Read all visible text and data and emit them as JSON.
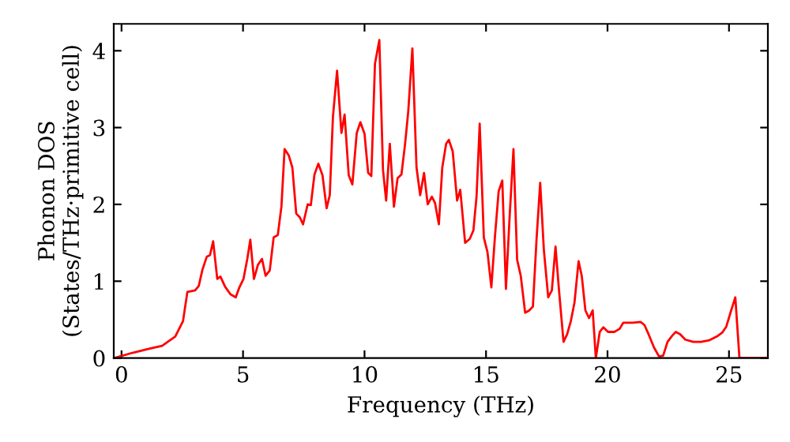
{
  "chart_data": {
    "type": "line",
    "xlabel": "Frequency (THz)",
    "ylabel": "Phonon DOS\n(States/THz·primitive cell)",
    "xlim": [
      -0.32,
      26.6
    ],
    "ylim": [
      0,
      4.35
    ],
    "xticks": [
      0,
      5,
      10,
      15,
      20,
      25
    ],
    "yticks": [
      0,
      1,
      2,
      3,
      4
    ],
    "grid": false,
    "legend": false,
    "marker": "none",
    "line_style": "solid",
    "x": [
      -0.3,
      0.48,
      1.13,
      1.67,
      2.21,
      2.53,
      2.71,
      3.03,
      3.18,
      3.33,
      3.51,
      3.64,
      3.77,
      3.94,
      4.07,
      4.26,
      4.48,
      4.7,
      4.85,
      5.02,
      5.17,
      5.3,
      5.45,
      5.61,
      5.78,
      5.93,
      6.1,
      6.26,
      6.43,
      6.58,
      6.71,
      6.88,
      7.03,
      7.19,
      7.34,
      7.47,
      7.66,
      7.79,
      7.94,
      8.1,
      8.27,
      8.44,
      8.57,
      8.7,
      8.87,
      9.05,
      9.18,
      9.35,
      9.5,
      9.68,
      9.83,
      10.0,
      10.15,
      10.28,
      10.43,
      10.61,
      10.76,
      10.89,
      11.04,
      11.21,
      11.36,
      11.52,
      11.67,
      11.8,
      11.97,
      12.14,
      12.29,
      12.45,
      12.6,
      12.77,
      12.9,
      13.06,
      13.2,
      13.36,
      13.47,
      13.63,
      13.81,
      13.94,
      14.14,
      14.33,
      14.48,
      14.61,
      14.74,
      14.91,
      15.06,
      15.22,
      15.37,
      15.52,
      15.67,
      15.82,
      15.97,
      16.13,
      16.28,
      16.43,
      16.61,
      16.78,
      16.93,
      17.08,
      17.23,
      17.38,
      17.56,
      17.71,
      17.86,
      18.01,
      18.19,
      18.34,
      18.49,
      18.64,
      18.81,
      18.94,
      19.09,
      19.24,
      19.39,
      19.52,
      19.68,
      19.83,
      20.02,
      20.28,
      20.5,
      20.65,
      21.04,
      21.36,
      21.52,
      21.69,
      21.91,
      22.12,
      22.29,
      22.47,
      22.66,
      22.81,
      22.99,
      23.2,
      23.53,
      23.85,
      24.18,
      24.5,
      24.72,
      24.89,
      25.09,
      25.26,
      25.43,
      26.56
    ],
    "series": [
      {
        "color": "#ff0000",
        "values": [
          0,
          0.07,
          0.12,
          0.16,
          0.28,
          0.48,
          0.86,
          0.88,
          0.94,
          1.15,
          1.32,
          1.34,
          1.52,
          1.03,
          1.06,
          0.93,
          0.83,
          0.79,
          0.92,
          1.03,
          1.28,
          1.54,
          1.03,
          1.21,
          1.29,
          1.07,
          1.14,
          1.57,
          1.6,
          1.97,
          2.72,
          2.64,
          2.48,
          1.88,
          1.83,
          1.74,
          2.0,
          1.99,
          2.39,
          2.53,
          2.38,
          1.95,
          2.12,
          3.14,
          3.74,
          2.93,
          3.17,
          2.38,
          2.26,
          2.93,
          3.07,
          2.92,
          2.41,
          2.37,
          3.83,
          4.14,
          2.45,
          2.05,
          2.79,
          1.97,
          2.34,
          2.39,
          2.79,
          3.21,
          4.03,
          2.48,
          2.12,
          2.41,
          2.0,
          2.1,
          2.02,
          1.74,
          2.48,
          2.79,
          2.84,
          2.69,
          2.05,
          2.19,
          1.5,
          1.55,
          1.66,
          2.1,
          3.05,
          1.57,
          1.38,
          0.92,
          1.59,
          2.17,
          2.31,
          0.9,
          1.83,
          2.72,
          1.28,
          1.07,
          0.59,
          0.62,
          0.67,
          1.55,
          2.28,
          1.41,
          0.79,
          0.88,
          1.45,
          0.86,
          0.21,
          0.31,
          0.48,
          0.72,
          1.26,
          1.07,
          0.62,
          0.52,
          0.62,
          0,
          0.34,
          0.4,
          0.34,
          0.34,
          0.38,
          0.46,
          0.46,
          0.47,
          0.43,
          0.31,
          0.14,
          0.02,
          0.03,
          0.21,
          0.29,
          0.34,
          0.31,
          0.24,
          0.21,
          0.21,
          0.23,
          0.28,
          0.33,
          0.41,
          0.62,
          0.79,
          0,
          0
        ]
      }
    ]
  }
}
